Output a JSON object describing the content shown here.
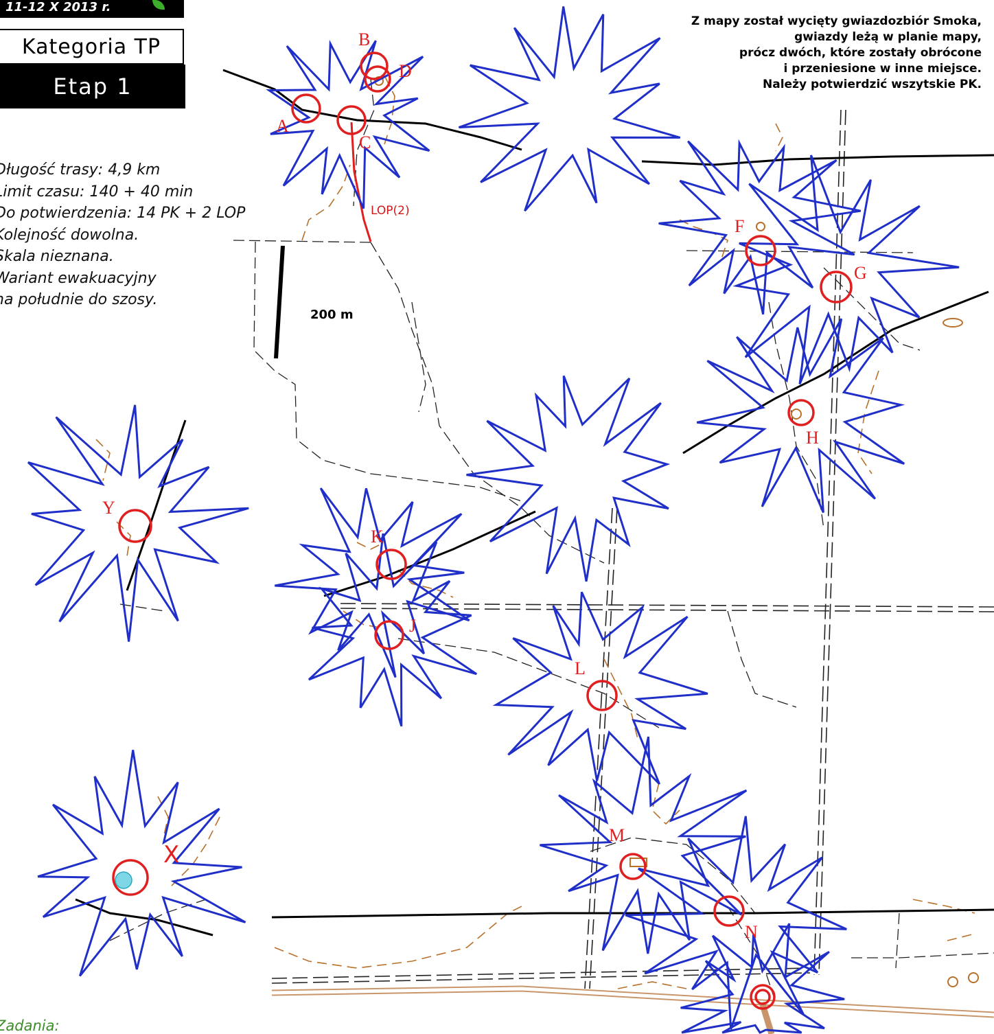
{
  "header": {
    "date": "11-12 X 2013 r.",
    "category": "Kategoria TP",
    "stage": "Etap 1"
  },
  "info_lines": [
    "Długość trasy: 4,9 km",
    "Limit czasu: 140 + 40 min",
    "Do potwierdzenia: 14 PK + 2 LOP",
    "Kolejność dowolna.",
    "Skala nieznana.",
    "Wariant ewakuacyjny",
    "na południe do szosy."
  ],
  "notice_lines": [
    "Z mapy został wycięty gwiazdozbiór Smoka,",
    "gwiazdy leżą w planie mapy,",
    "prócz dwóch, które zostały obrócone",
    "i przeniesione w inne miejsce.",
    "Należy potwierdzić wszytskie PK."
  ],
  "scale_label": "200 m",
  "lop_label": "LOP(2)",
  "tasks_label": "Zadania:",
  "colors": {
    "star_outline": "#1f2fc8",
    "control_circle": "#e02020",
    "contour": "#b8702a",
    "road": "#000000",
    "main_road": "#c8966a",
    "water": "#7fd7e6"
  },
  "control_points": [
    {
      "label": "A"
    },
    {
      "label": "B"
    },
    {
      "label": "C"
    },
    {
      "label": "D"
    },
    {
      "label": "F"
    },
    {
      "label": "G"
    },
    {
      "label": "H"
    },
    {
      "label": "K"
    },
    {
      "label": "J"
    },
    {
      "label": "L"
    },
    {
      "label": "M"
    },
    {
      "label": "N"
    },
    {
      "label": "Y"
    },
    {
      "label": "X"
    }
  ]
}
